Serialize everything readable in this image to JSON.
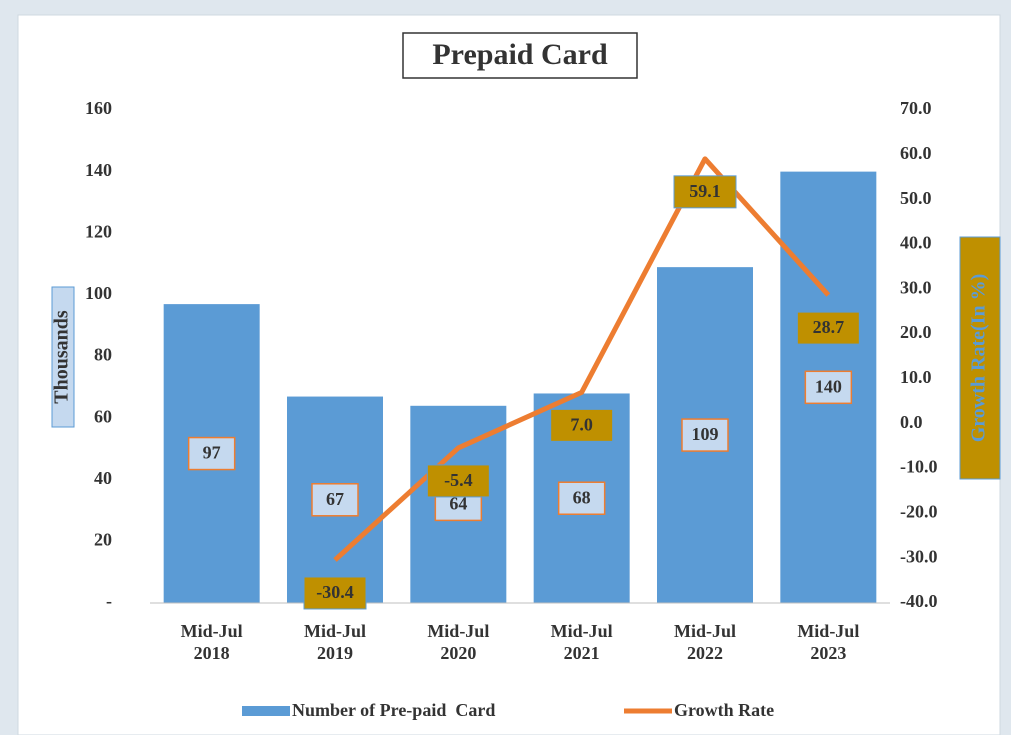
{
  "chart_data": {
    "type": "combo",
    "title": "Prepaid Card",
    "y_label": "Thousands",
    "y2_label": "Growth Rate(In %)",
    "categories": [
      "Mid-Jul 2018",
      "Mid-Jul 2019",
      "Mid-Jul 2020",
      "Mid-Jul 2021",
      "Mid-Jul 2022",
      "Mid-Jul 2023"
    ],
    "series": [
      {
        "name": "Number of Pre-paid  Card",
        "type": "bar",
        "color": "#5b9bd5",
        "values": [
          97,
          67,
          64,
          68,
          109,
          140
        ]
      },
      {
        "name": "Growth Rate",
        "type": "line",
        "axis": "y2",
        "color": "#ed7d31",
        "values": [
          null,
          -30.4,
          -5.4,
          7.0,
          59.1,
          28.7
        ],
        "value_labels": [
          null,
          "-30.4",
          "-5.4",
          "7.0",
          "59.1",
          "28.7"
        ]
      }
    ],
    "ylim": [
      0,
      160
    ],
    "yticks": [
      {
        "value": 0,
        "label": "-"
      },
      20,
      40,
      60,
      80,
      100,
      120,
      140,
      160
    ],
    "y2lim": [
      -40,
      70
    ],
    "y2ticks": [
      {
        "value": -40,
        "label": "-40.0"
      },
      {
        "value": -30,
        "label": "-30.0"
      },
      {
        "value": -20,
        "label": "-20.0"
      },
      {
        "value": -10,
        "label": "-10.0"
      },
      {
        "value": 0,
        "label": "0.0"
      },
      {
        "value": 10,
        "label": "10.0"
      },
      {
        "value": 20,
        "label": "20.0"
      },
      {
        "value": 30,
        "label": "30.0"
      },
      {
        "value": 40,
        "label": "40.0"
      },
      {
        "value": 50,
        "label": "50.0"
      },
      {
        "value": 60,
        "label": "60.0"
      },
      {
        "value": 70,
        "label": "70.0"
      }
    ],
    "legend": "bottom"
  }
}
